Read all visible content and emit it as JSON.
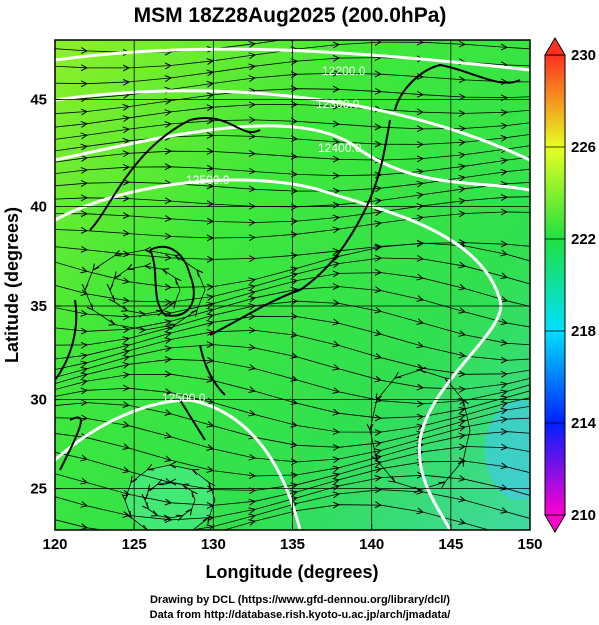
{
  "title": "MSM 18Z28Aug2025 (200.0hPa)",
  "map": {
    "xlabel": "Longitude (degrees)",
    "ylabel": "Latitude  (degrees)",
    "xlim": [
      120,
      150
    ],
    "xticks": [
      120,
      125,
      130,
      135,
      140,
      145,
      150
    ],
    "ylim": [
      22.6,
      47.6
    ],
    "yticks": [
      25,
      30,
      35,
      40,
      45
    ],
    "projection": "mercator",
    "grid": true,
    "contour_labels": [
      "12200.0",
      "12300.0",
      "12400.0",
      "12500.0",
      "12500.0"
    ]
  },
  "colorbar": {
    "lim": [
      210,
      230
    ],
    "ticks": [
      210,
      214,
      218,
      222,
      226,
      230
    ],
    "colors": [
      "#ff00cc",
      "#0020ff",
      "#00e0ff",
      "#20e040",
      "#e8ff20",
      "#ff3020"
    ]
  },
  "footer": {
    "lines": [
      "Drawing by DCL (https://www.gfd-dennou.org/library/dcl/)",
      "Data from http://database.rish.kyoto-u.ac.jp/arch/jmadata/"
    ]
  }
}
